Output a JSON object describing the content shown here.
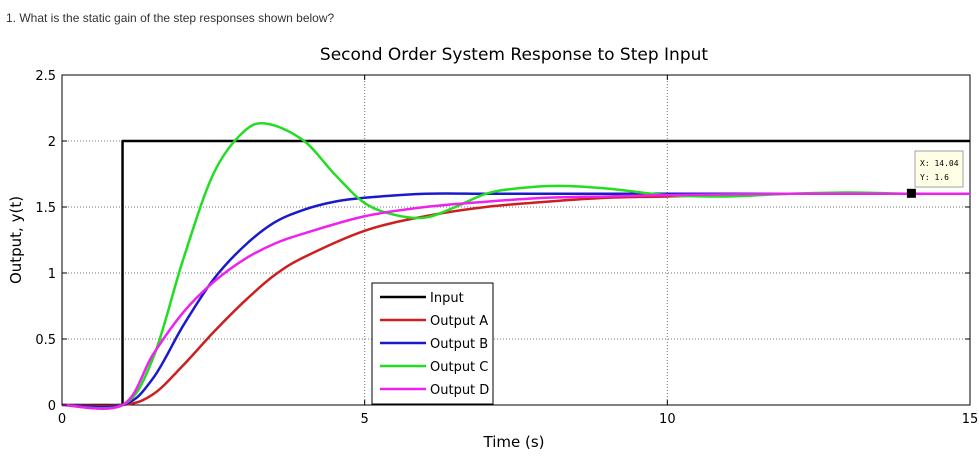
{
  "question": "1. What is the static gain of the step responses shown below?",
  "chart_data": {
    "type": "line",
    "title": "Second Order System Response to Step Input",
    "xlabel": "Time (s)",
    "ylabel": "Output, y(t)",
    "xlim": [
      0,
      15
    ],
    "ylim": [
      0,
      2.5
    ],
    "xticks": [
      0,
      5,
      10,
      15
    ],
    "yticks": [
      0,
      0.5,
      1,
      1.5,
      2,
      2.5
    ],
    "ytick_labels": [
      "0",
      "0.5",
      "1",
      "1.5",
      "2",
      "2.5"
    ],
    "xtick_labels": [
      "0",
      "5",
      "10",
      "15"
    ],
    "grid": true,
    "legend_position": "bottom-center",
    "series": [
      {
        "name": "Input",
        "color": "#000000",
        "x": [
          0,
          1,
          1,
          15
        ],
        "y": [
          0,
          0,
          2,
          2
        ]
      },
      {
        "name": "Output A",
        "color": "#cc2020",
        "x": [
          0,
          1,
          1.5,
          2,
          2.5,
          3,
          3.5,
          4,
          5,
          6,
          7,
          8,
          9,
          10,
          12,
          14,
          15
        ],
        "y": [
          0,
          0,
          0.08,
          0.3,
          0.55,
          0.78,
          0.98,
          1.12,
          1.32,
          1.43,
          1.5,
          1.54,
          1.57,
          1.58,
          1.6,
          1.6,
          1.6
        ]
      },
      {
        "name": "Output B",
        "color": "#1a1acc",
        "x": [
          0,
          1,
          1.5,
          2,
          2.5,
          3,
          3.5,
          4,
          4.5,
          5,
          6,
          7,
          8,
          10,
          12,
          14,
          15
        ],
        "y": [
          0,
          0,
          0.2,
          0.6,
          0.95,
          1.2,
          1.38,
          1.48,
          1.54,
          1.57,
          1.6,
          1.6,
          1.6,
          1.6,
          1.6,
          1.6,
          1.6
        ]
      },
      {
        "name": "Output C",
        "color": "#22dd22",
        "x": [
          0,
          1,
          1.5,
          2,
          2.5,
          3,
          3.4,
          4,
          4.5,
          5,
          5.5,
          6,
          6.5,
          7,
          7.5,
          8.2,
          9,
          10,
          11,
          12,
          13,
          14,
          15
        ],
        "y": [
          0,
          0,
          0.35,
          1.1,
          1.75,
          2.07,
          2.13,
          2.0,
          1.75,
          1.53,
          1.44,
          1.42,
          1.5,
          1.6,
          1.64,
          1.66,
          1.64,
          1.59,
          1.58,
          1.6,
          1.61,
          1.6,
          1.6
        ]
      },
      {
        "name": "Output D",
        "color": "#ee22ee",
        "x": [
          0,
          1,
          1.5,
          2,
          2.5,
          3,
          3.5,
          4,
          5,
          6,
          7,
          8,
          9,
          10,
          12,
          14,
          15
        ],
        "y": [
          0,
          0,
          0.38,
          0.7,
          0.93,
          1.1,
          1.22,
          1.3,
          1.43,
          1.5,
          1.54,
          1.57,
          1.58,
          1.59,
          1.6,
          1.6,
          1.6
        ]
      }
    ],
    "datatip": {
      "x": 14.04,
      "y": 1.6,
      "x_text": "X: 14.04",
      "y_text": "Y: 1.6"
    }
  }
}
